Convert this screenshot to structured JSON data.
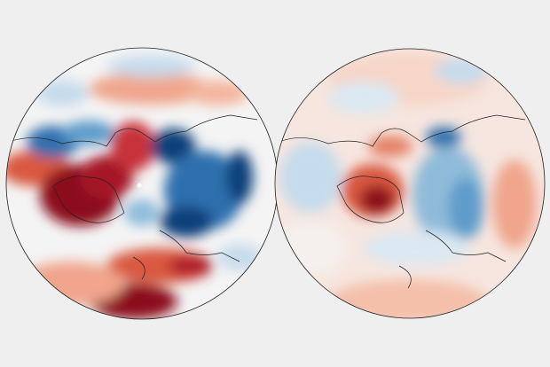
{
  "maps": [
    {
      "id": "left",
      "projection": "north-polar-stereographic"
    },
    {
      "id": "right",
      "projection": "north-polar-stereographic"
    }
  ],
  "colors": {
    "background": "#efefef",
    "neutral": "#f4f4f4",
    "warm_light": "#f4b8a0",
    "warm_mid": "#d9583f",
    "warm_dark": "#8b0a1c",
    "cool_light": "#c6dbec",
    "cool_mid": "#5f9ccb",
    "cool_dark": "#0d3f7a",
    "coastline": "#222222"
  }
}
